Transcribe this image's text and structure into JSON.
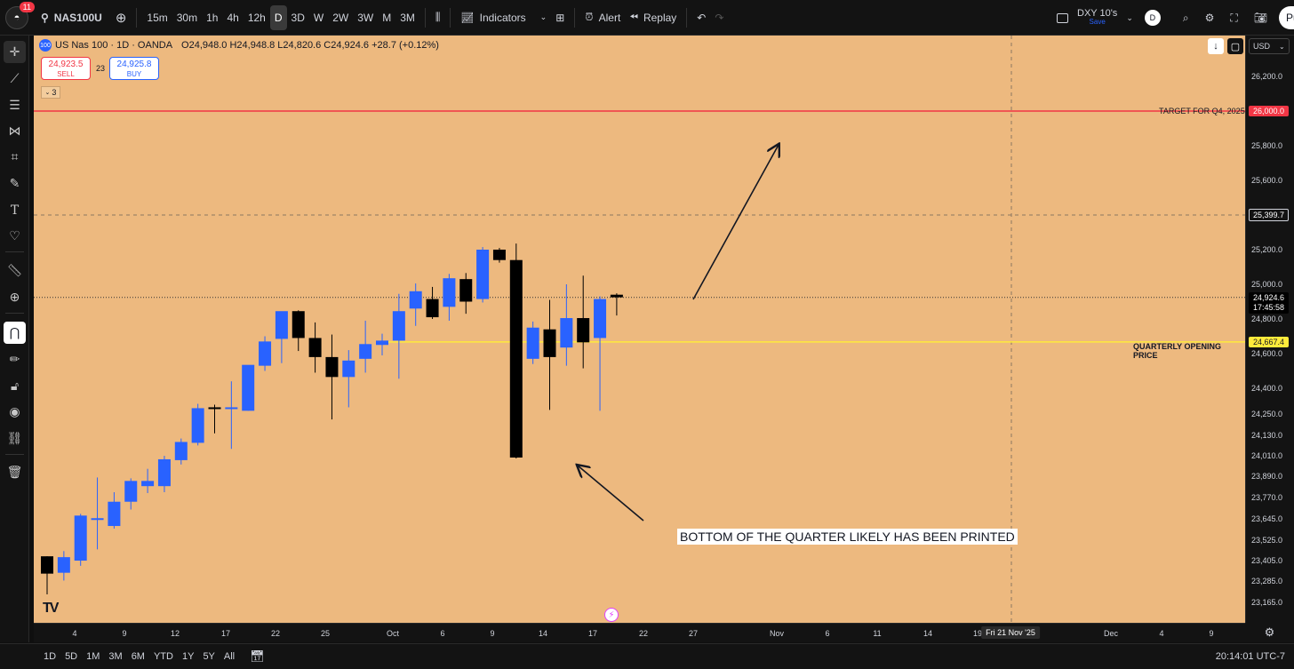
{
  "topbar": {
    "notification_count": "11",
    "symbol": "NAS100U",
    "timeframes": [
      "15m",
      "30m",
      "1h",
      "4h",
      "12h",
      "D",
      "3D",
      "W",
      "2W",
      "3W",
      "M",
      "3M"
    ],
    "active_timeframe": "D",
    "indicators_label": "Indicators",
    "alert_label": "Alert",
    "replay_label": "Replay",
    "layout_name": "DXY 10's",
    "layout_status": "Save",
    "avatar_letter": "D",
    "publish_label": "Pu"
  },
  "legend": {
    "title": "US Nas 100 · 1D · OANDA",
    "ohlc": "O24,948.0 H24,948.8 L24,820.6 C24,924.6 +28.7 (+0.12%)",
    "icon_text": "100",
    "sell_price": "24,923.5",
    "sell_label": "SELL",
    "spread": "23",
    "buy_price": "24,925.8",
    "buy_label": "BUY",
    "indicator_count": "3"
  },
  "annotations": {
    "bottom_text": "BOTTOM OF THE QUARTER LIKELY HAS BEEN PRINTED",
    "target_text": "TARGET FOR Q4, 2025",
    "qop_text": "QUARTERLY OPENING PRICE"
  },
  "price_axis": {
    "currency": "USD",
    "labels": [
      "26,200.0",
      "25,800.0",
      "25,600.0",
      "25,200.0",
      "25,000.0",
      "24,800.0",
      "24,600.0",
      "24,400.0",
      "24,250.0",
      "24,130.0",
      "24,010.0",
      "23,890.0",
      "23,770.0",
      "23,645.0",
      "23,525.0",
      "23,405.0",
      "23,285.0",
      "23,165.0"
    ],
    "target_tag": "26,000.0",
    "crosshair_tag": "25,399.7",
    "last_price_tag": "24,924.6",
    "countdown": "17:45:58",
    "qop_tag": "24,667.4"
  },
  "time_axis": {
    "labels": [
      "4",
      "9",
      "12",
      "17",
      "22",
      "25",
      "Oct",
      "6",
      "9",
      "14",
      "17",
      "22",
      "27",
      "Nov",
      "6",
      "11",
      "14",
      "19",
      "Dec",
      "4",
      "9"
    ],
    "crosshair_date": "Fri 21 Nov '25"
  },
  "bottombar": {
    "ranges": [
      "1D",
      "5D",
      "1M",
      "3M",
      "6M",
      "YTD",
      "1Y",
      "5Y",
      "All"
    ],
    "clock": "20:14:01 UTC-7"
  },
  "colors": {
    "chart_bg": "#edb97f",
    "bull": "#2962ff",
    "bear": "#000000",
    "target_line": "#f23645",
    "qop_line": "#ffeb3b"
  },
  "chart_data": {
    "type": "candlestick",
    "ylim": [
      23100,
      26350
    ],
    "candles": [
      {
        "o": 23430,
        "h": 23430,
        "l": 23210,
        "c": 23330
      },
      {
        "o": 23335,
        "h": 23460,
        "l": 23290,
        "c": 23425
      },
      {
        "o": 23405,
        "h": 23675,
        "l": 23375,
        "c": 23665
      },
      {
        "o": 23650,
        "h": 23885,
        "l": 23470,
        "c": 23650
      },
      {
        "o": 23605,
        "h": 23800,
        "l": 23590,
        "c": 23745
      },
      {
        "o": 23745,
        "h": 23880,
        "l": 23700,
        "c": 23865
      },
      {
        "o": 23835,
        "h": 23935,
        "l": 23795,
        "c": 23865
      },
      {
        "o": 23835,
        "h": 24010,
        "l": 23800,
        "c": 23990
      },
      {
        "o": 23985,
        "h": 24110,
        "l": 23960,
        "c": 24090
      },
      {
        "o": 24085,
        "h": 24310,
        "l": 24070,
        "c": 24285
      },
      {
        "o": 24290,
        "h": 24305,
        "l": 24140,
        "c": 24285
      },
      {
        "o": 24290,
        "h": 24440,
        "l": 24050,
        "c": 24290
      },
      {
        "o": 24270,
        "h": 24520,
        "l": 24270,
        "c": 24535
      },
      {
        "o": 24530,
        "h": 24700,
        "l": 24500,
        "c": 24670
      },
      {
        "o": 24685,
        "h": 24840,
        "l": 24545,
        "c": 24845
      },
      {
        "o": 24845,
        "h": 24850,
        "l": 24615,
        "c": 24690
      },
      {
        "o": 24690,
        "h": 24780,
        "l": 24490,
        "c": 24580
      },
      {
        "o": 24580,
        "h": 24710,
        "l": 24220,
        "c": 24465
      },
      {
        "o": 24465,
        "h": 24620,
        "l": 24290,
        "c": 24560
      },
      {
        "o": 24570,
        "h": 24790,
        "l": 24490,
        "c": 24655
      },
      {
        "o": 24650,
        "h": 24715,
        "l": 24590,
        "c": 24675
      },
      {
        "o": 24675,
        "h": 24945,
        "l": 24455,
        "c": 24845
      },
      {
        "o": 24860,
        "h": 25005,
        "l": 24760,
        "c": 24960
      },
      {
        "o": 24915,
        "h": 24985,
        "l": 24800,
        "c": 24810
      },
      {
        "o": 24870,
        "h": 25060,
        "l": 24790,
        "c": 25035
      },
      {
        "o": 25030,
        "h": 25065,
        "l": 24830,
        "c": 24900
      },
      {
        "o": 24915,
        "h": 25215,
        "l": 24895,
        "c": 25200
      },
      {
        "o": 25200,
        "h": 25210,
        "l": 25125,
        "c": 25140
      },
      {
        "o": 25140,
        "h": 25235,
        "l": 23995,
        "c": 24000
      },
      {
        "o": 24570,
        "h": 24785,
        "l": 24540,
        "c": 24750
      },
      {
        "o": 24740,
        "h": 24910,
        "l": 24275,
        "c": 24580
      },
      {
        "o": 24635,
        "h": 25000,
        "l": 24530,
        "c": 24805
      },
      {
        "o": 24805,
        "h": 25050,
        "l": 24515,
        "c": 24665
      },
      {
        "o": 24690,
        "h": 24930,
        "l": 24270,
        "c": 24915
      },
      {
        "o": 24940,
        "h": 24948,
        "l": 24820,
        "c": 24925
      }
    ],
    "target_price": 26000.0,
    "qop_price": 24667.4,
    "last_price": 24924.6,
    "crosshair_price": 25399.7
  }
}
